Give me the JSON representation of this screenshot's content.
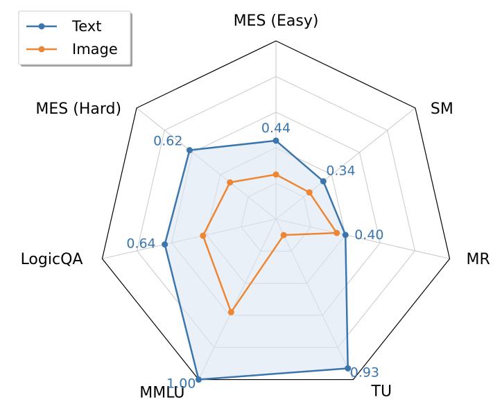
{
  "chart_data": {
    "type": "radar",
    "axes": [
      "MES (Easy)",
      "SM",
      "MR",
      "TU",
      "MMLU",
      "LogicQA",
      "MES (Hard)"
    ],
    "rlim": [
      0,
      1
    ],
    "grid": true,
    "legend_position": "top-left",
    "series": [
      {
        "name": "Text",
        "values": [
          0.44,
          0.34,
          0.4,
          0.93,
          1.0,
          0.64,
          0.62
        ],
        "color": "#3a75ae",
        "fill": "#dce6f1"
      },
      {
        "name": "Image",
        "values": [
          0.25,
          0.24,
          0.35,
          0.1,
          0.58,
          0.42,
          0.33
        ],
        "color": "#ee8533"
      }
    ],
    "annotations": [
      "0.44",
      "0.34",
      "0.40",
      "0.93",
      "1.00",
      "0.64",
      "0.62"
    ]
  }
}
